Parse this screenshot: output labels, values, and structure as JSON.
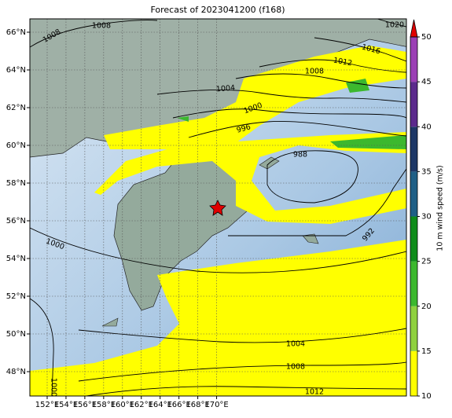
{
  "title": "Forecast of 2023041200 (f168)",
  "lon_labels": [
    "152°E",
    "154°E",
    "156°E",
    "158°E",
    "160°E",
    "162°E",
    "164°E",
    "166°E",
    "168°E",
    "170°E"
  ],
  "lat_labels": [
    "66°N",
    "64°N",
    "62°N",
    "60°N",
    "58°N",
    "56°N",
    "54°N",
    "52°N",
    "50°N",
    "48°N"
  ],
  "contour_labels": [
    "1008",
    "1008",
    "1020",
    "1016",
    "1012",
    "1008",
    "1004",
    "1000",
    "996",
    "988",
    "992",
    "1000",
    "1004",
    "1008",
    "1012",
    "1000"
  ],
  "colorbar": {
    "label": "10 m wind speed (m/s)",
    "lim": [
      10,
      50
    ],
    "ticks": [
      10,
      15,
      20,
      25,
      30,
      35,
      40,
      45,
      50
    ],
    "colors": [
      "#ffff00",
      "#8fd13f",
      "#3cb82e",
      "#0f8c1a",
      "#1f5f86",
      "#1d3766",
      "#5b2a8c",
      "#9b3fb5"
    ],
    "extend_color": "#e00000"
  }
}
